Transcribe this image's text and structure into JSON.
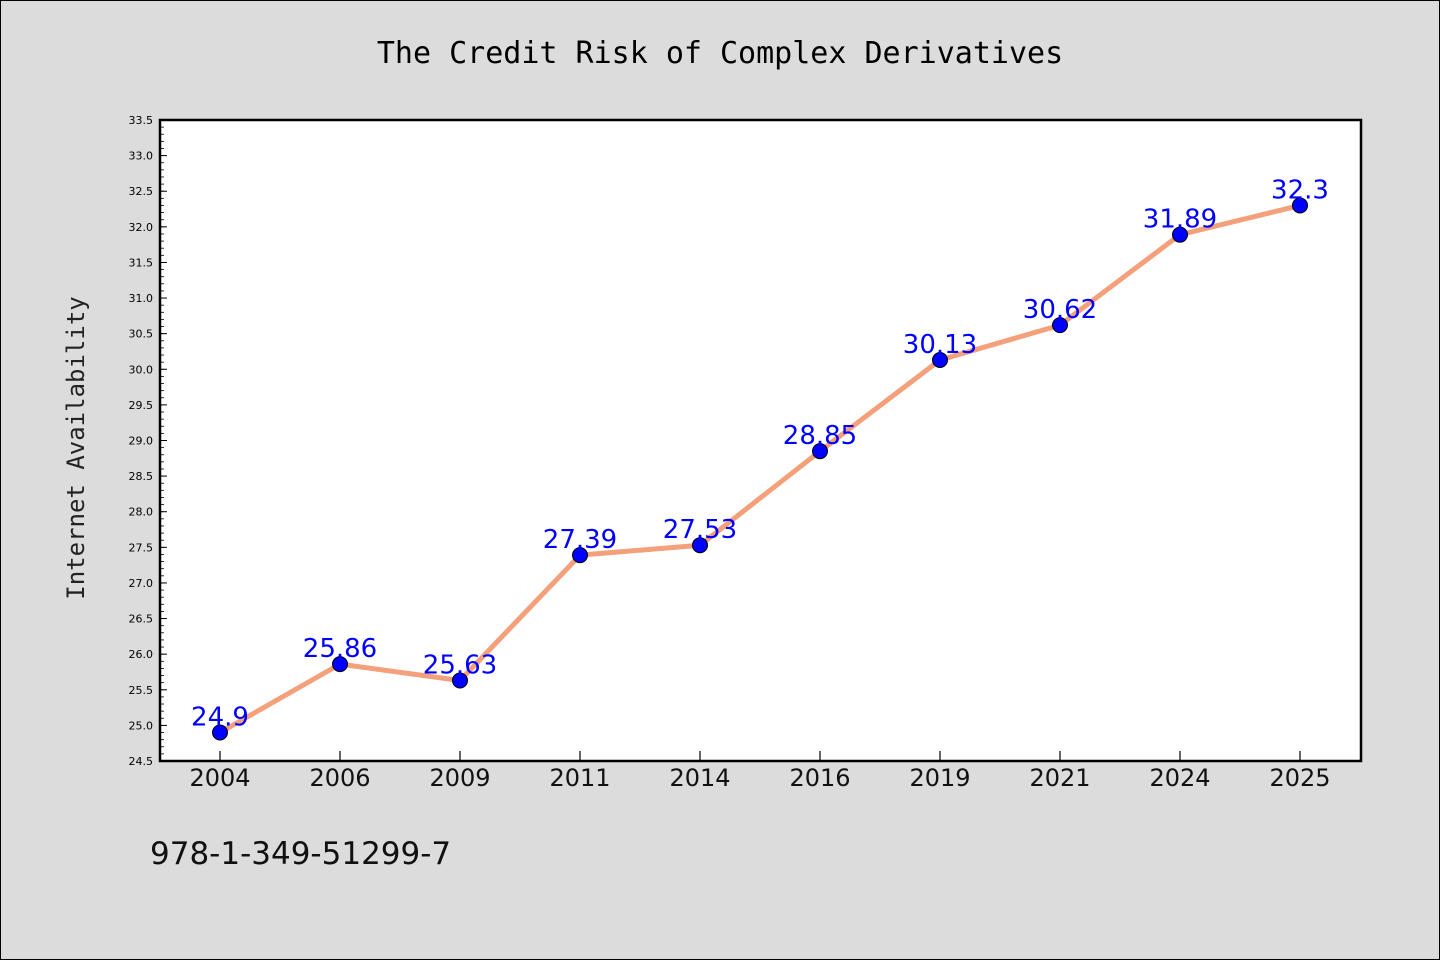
{
  "chart_data": {
    "type": "line",
    "title": "The Credit Risk of Complex Derivatives",
    "ylabel": "Internet Availability",
    "xlabel": "",
    "categories": [
      "2004",
      "2006",
      "2009",
      "2011",
      "2014",
      "2016",
      "2019",
      "2021",
      "2024",
      "2025"
    ],
    "data_labels": [
      "24.9",
      "25.86",
      "25.63",
      "27.39",
      "27.53",
      "28.85",
      "30.13",
      "30.62",
      "31.89",
      "32.3"
    ],
    "series": [
      {
        "values": [
          24.9,
          25.86,
          25.63,
          27.39,
          27.53,
          28.85,
          30.13,
          30.62,
          31.89,
          32.3
        ],
        "line_color": "#f4a07a",
        "marker_color": "#0000ff"
      }
    ],
    "ylim": [
      24.5,
      33.5
    ],
    "yticks": [
      "24.5",
      "25.0",
      "25.5",
      "26.0",
      "26.5",
      "27.0",
      "27.5",
      "28.0",
      "28.5",
      "29.0",
      "29.5",
      "30.0",
      "30.5",
      "31.0",
      "31.5",
      "32.0",
      "32.5",
      "33.0",
      "33.5"
    ],
    "grid": false,
    "legend": "none",
    "background_color": "#dcdcdc",
    "plot_background_color": "#ffffff",
    "label_color": "#0000ff"
  },
  "footer_text": "978-1-349-51299-7"
}
